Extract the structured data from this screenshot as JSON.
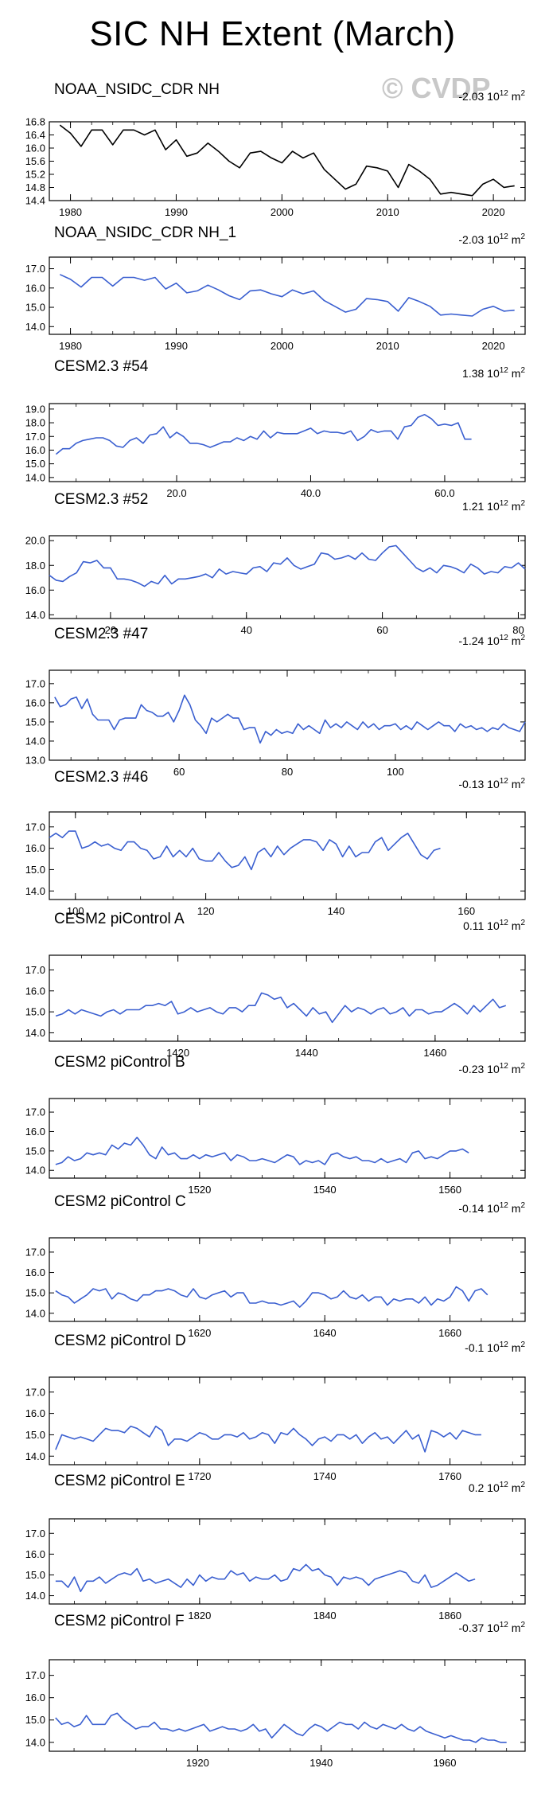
{
  "title": "SIC NH Extent (March)",
  "watermark": "© CVDP",
  "colors": {
    "obs": "#000000",
    "model": "#3a5fd0"
  },
  "chart_data": [
    {
      "type": "line",
      "title": "NOAA_NSIDC_CDR NH",
      "trend": "-2.03",
      "trend_unit": "10",
      "trend_exp": "12",
      "trend_unit2": "m",
      "trend_exp2": "2",
      "xlim": [
        1978,
        2023
      ],
      "ylim": [
        14.4,
        16.8
      ],
      "yticks": [
        "16.8",
        "16.4",
        "16.0",
        "15.6",
        "15.2",
        "14.8",
        "14.4"
      ],
      "ytick_vals": [
        16.8,
        16.4,
        16.0,
        15.6,
        15.2,
        14.8,
        14.4
      ],
      "xticks": [
        "1980",
        "1990",
        "2000",
        "2010",
        "2020"
      ],
      "xtick_vals": [
        1980,
        1990,
        2000,
        2010,
        2020
      ],
      "color": "obs",
      "x_start": 1979,
      "values": [
        16.7,
        16.45,
        16.05,
        16.55,
        16.55,
        16.1,
        16.55,
        16.55,
        16.4,
        16.55,
        15.95,
        16.25,
        15.75,
        15.85,
        16.15,
        15.9,
        15.6,
        15.4,
        15.85,
        15.9,
        15.7,
        15.55,
        15.9,
        15.7,
        15.85,
        15.35,
        15.05,
        14.75,
        14.9,
        15.45,
        15.4,
        15.3,
        14.8,
        15.5,
        15.3,
        15.05,
        14.6,
        14.65,
        14.6,
        14.55,
        14.9,
        15.05,
        14.8,
        14.85
      ]
    },
    {
      "type": "line",
      "title": "NOAA_NSIDC_CDR NH_1",
      "trend": "-2.03",
      "trend_unit": "10",
      "trend_exp": "12",
      "trend_unit2": "m",
      "trend_exp2": "2",
      "xlim": [
        1978,
        2023
      ],
      "ylim": [
        13.6,
        17.6
      ],
      "yticks": [
        "17.0",
        "16.0",
        "15.0",
        "14.0"
      ],
      "ytick_vals": [
        17,
        16,
        15,
        14
      ],
      "xticks": [
        "1980",
        "1990",
        "2000",
        "2010",
        "2020"
      ],
      "xtick_vals": [
        1980,
        1990,
        2000,
        2010,
        2020
      ],
      "color": "model",
      "x_start": 1979,
      "values": [
        16.7,
        16.45,
        16.05,
        16.55,
        16.55,
        16.1,
        16.55,
        16.55,
        16.4,
        16.55,
        15.95,
        16.25,
        15.75,
        15.85,
        16.15,
        15.9,
        15.6,
        15.4,
        15.85,
        15.9,
        15.7,
        15.55,
        15.9,
        15.7,
        15.85,
        15.35,
        15.05,
        14.75,
        14.9,
        15.45,
        15.4,
        15.3,
        14.8,
        15.5,
        15.3,
        15.05,
        14.6,
        14.65,
        14.6,
        14.55,
        14.9,
        15.05,
        14.8,
        14.85
      ]
    },
    {
      "type": "line",
      "title": "CESM2.3 #54",
      "trend": "1.38",
      "trend_unit": "10",
      "trend_exp": "12",
      "trend_unit2": "m",
      "trend_exp2": "2",
      "xlim": [
        1,
        72
      ],
      "ylim": [
        13.7,
        19.4
      ],
      "yticks": [
        "19.0",
        "18.0",
        "17.0",
        "16.0",
        "15.0",
        "14.0"
      ],
      "ytick_vals": [
        19,
        18,
        17,
        16,
        15,
        14
      ],
      "xticks": [
        "20.0",
        "40.0",
        "60.0"
      ],
      "xtick_vals": [
        20,
        40,
        60
      ],
      "color": "model",
      "x_start": 2,
      "values": [
        15.7,
        16.1,
        16.1,
        16.5,
        16.7,
        16.8,
        16.9,
        16.9,
        16.7,
        16.3,
        16.2,
        16.7,
        16.9,
        16.5,
        17.1,
        17.2,
        17.7,
        16.9,
        17.3,
        17.0,
        16.5,
        16.5,
        16.4,
        16.2,
        16.4,
        16.6,
        16.6,
        16.9,
        16.7,
        17.0,
        16.8,
        17.4,
        16.9,
        17.3,
        17.2,
        17.2,
        17.2,
        17.4,
        17.6,
        17.2,
        17.4,
        17.3,
        17.3,
        17.2,
        17.4,
        16.7,
        17.0,
        17.5,
        17.3,
        17.4,
        17.4,
        16.8,
        17.7,
        17.8,
        18.4,
        18.6,
        18.3,
        17.8,
        17.9,
        17.8,
        18.0,
        16.8,
        16.8
      ]
    },
    {
      "type": "line",
      "title": "CESM2.3 #52",
      "trend": "1.21",
      "trend_unit": "10",
      "trend_exp": "12",
      "trend_unit2": "m",
      "trend_exp2": "2",
      "xlim": [
        11,
        81
      ],
      "ylim": [
        13.7,
        20.4
      ],
      "yticks": [
        "20.0",
        "18.0",
        "16.0",
        "14.0"
      ],
      "ytick_vals": [
        20,
        18,
        16,
        14
      ],
      "xticks": [
        "20",
        "40",
        "60",
        "80"
      ],
      "xtick_vals": [
        20,
        40,
        60,
        80
      ],
      "color": "model",
      "x_start": 11,
      "values": [
        17.2,
        16.8,
        16.7,
        17.1,
        17.4,
        18.3,
        18.2,
        18.4,
        17.8,
        17.8,
        16.9,
        16.9,
        16.8,
        16.6,
        16.3,
        16.7,
        16.5,
        17.2,
        16.5,
        16.9,
        16.9,
        17.0,
        17.1,
        17.3,
        17.0,
        17.7,
        17.3,
        17.5,
        17.4,
        17.3,
        17.8,
        17.9,
        17.5,
        18.2,
        18.1,
        18.6,
        18.0,
        17.7,
        17.9,
        18.1,
        19.0,
        18.9,
        18.5,
        18.6,
        18.8,
        18.5,
        19.0,
        18.5,
        18.4,
        19.0,
        19.5,
        19.6,
        19.0,
        18.4,
        17.8,
        17.5,
        17.8,
        17.4,
        18.0,
        17.9,
        17.7,
        17.4,
        18.1,
        17.8,
        17.3,
        17.5,
        17.4,
        17.9,
        17.8,
        18.2,
        17.7
      ]
    },
    {
      "type": "line",
      "title": "CESM2.3 #47",
      "trend": "-1.24",
      "trend_unit": "10",
      "trend_exp": "12",
      "trend_unit2": "m",
      "trend_exp2": "2",
      "xlim": [
        36,
        124
      ],
      "ylim": [
        13.0,
        17.7
      ],
      "yticks": [
        "17.0",
        "16.0",
        "15.0",
        "14.0",
        "13.0"
      ],
      "ytick_vals": [
        17,
        16,
        15,
        14,
        13
      ],
      "xticks": [
        "60",
        "80",
        "100"
      ],
      "xtick_vals": [
        60,
        80,
        100
      ],
      "color": "model",
      "x_start": 37,
      "values": [
        16.3,
        15.8,
        15.9,
        16.2,
        16.3,
        15.7,
        16.2,
        15.4,
        15.1,
        15.1,
        15.1,
        14.6,
        15.1,
        15.2,
        15.2,
        15.2,
        15.9,
        15.6,
        15.5,
        15.3,
        15.3,
        15.5,
        15.0,
        15.6,
        16.4,
        15.9,
        15.1,
        14.8,
        14.4,
        15.2,
        15.0,
        15.2,
        15.4,
        15.2,
        15.2,
        14.6,
        14.7,
        14.7,
        13.9,
        14.5,
        14.3,
        14.6,
        14.4,
        14.5,
        14.4,
        14.9,
        14.6,
        14.8,
        14.6,
        14.4,
        15.1,
        14.7,
        14.9,
        14.7,
        15.0,
        14.8,
        14.6,
        15.0,
        14.7,
        14.9,
        14.6,
        14.8,
        14.8,
        14.9,
        14.6,
        14.8,
        14.6,
        15.0,
        14.8,
        14.6,
        14.8,
        15.0,
        14.8,
        14.8,
        14.5,
        14.9,
        14.7,
        14.8,
        14.6,
        14.7,
        14.5,
        14.7,
        14.6,
        14.9,
        14.7,
        14.6,
        14.5,
        15.0
      ]
    },
    {
      "type": "line",
      "title": "CESM2.3 #46",
      "trend": "-0.13",
      "trend_unit": "10",
      "trend_exp": "12",
      "trend_unit2": "m",
      "trend_exp2": "2",
      "xlim": [
        96,
        169
      ],
      "ylim": [
        13.6,
        17.7
      ],
      "yticks": [
        "17.0",
        "16.0",
        "15.0",
        "14.0"
      ],
      "ytick_vals": [
        17,
        16,
        15,
        14
      ],
      "xticks": [
        "100",
        "120",
        "140",
        "160"
      ],
      "xtick_vals": [
        100,
        120,
        140,
        160
      ],
      "color": "model",
      "x_start": 96,
      "values": [
        16.5,
        16.7,
        16.5,
        16.8,
        16.8,
        16.0,
        16.1,
        16.3,
        16.1,
        16.2,
        16.0,
        15.9,
        16.3,
        16.3,
        16.0,
        15.9,
        15.5,
        15.6,
        16.1,
        15.6,
        15.9,
        15.6,
        16.0,
        15.5,
        15.4,
        15.4,
        15.8,
        15.4,
        15.1,
        15.2,
        15.6,
        15.0,
        15.8,
        16.0,
        15.6,
        16.1,
        15.7,
        16.0,
        16.2,
        16.4,
        16.4,
        16.3,
        15.9,
        16.4,
        16.2,
        15.6,
        16.1,
        15.6,
        15.8,
        15.8,
        16.3,
        16.5,
        15.9,
        16.2,
        16.5,
        16.7,
        16.2,
        15.7,
        15.5,
        15.9,
        16.0
      ]
    },
    {
      "type": "line",
      "title": "CESM2 piControl A",
      "trend": "0.11",
      "trend_unit": "10",
      "trend_exp": "12",
      "trend_unit2": "m",
      "trend_exp2": "2",
      "xlim": [
        1400,
        1474
      ],
      "ylim": [
        13.6,
        17.7
      ],
      "yticks": [
        "17.0",
        "16.0",
        "15.0",
        "14.0"
      ],
      "ytick_vals": [
        17,
        16,
        15,
        14
      ],
      "xticks": [
        "1420",
        "1440",
        "1460"
      ],
      "xtick_vals": [
        1420,
        1440,
        1460
      ],
      "color": "model",
      "x_start": 1401,
      "values": [
        14.8,
        14.9,
        15.1,
        14.9,
        15.1,
        15.0,
        14.9,
        14.8,
        15.0,
        15.1,
        14.9,
        15.1,
        15.1,
        15.1,
        15.3,
        15.3,
        15.4,
        15.3,
        15.5,
        14.9,
        15.0,
        15.2,
        15.0,
        15.1,
        15.2,
        15.0,
        14.9,
        15.2,
        15.2,
        15.0,
        15.3,
        15.3,
        15.9,
        15.8,
        15.6,
        15.7,
        15.2,
        15.4,
        15.1,
        14.8,
        15.2,
        14.9,
        15.0,
        14.5,
        14.9,
        15.3,
        15.0,
        15.2,
        15.1,
        14.9,
        15.1,
        15.2,
        14.9,
        15.0,
        15.2,
        14.8,
        15.1,
        15.1,
        14.9,
        15.0,
        15.0,
        15.2,
        15.4,
        15.2,
        14.9,
        15.3,
        15.0,
        15.3,
        15.6,
        15.2,
        15.3
      ]
    },
    {
      "type": "line",
      "title": "CESM2 piControl B",
      "trend": "-0.23",
      "trend_unit": "10",
      "trend_exp": "12",
      "trend_unit2": "m",
      "trend_exp2": "2",
      "xlim": [
        1496,
        1572
      ],
      "ylim": [
        13.6,
        17.7
      ],
      "yticks": [
        "17.0",
        "16.0",
        "15.0",
        "14.0"
      ],
      "ytick_vals": [
        17,
        16,
        15,
        14
      ],
      "xticks": [
        "1520",
        "1540",
        "1560"
      ],
      "xtick_vals": [
        1520,
        1540,
        1560
      ],
      "color": "model",
      "x_start": 1497,
      "values": [
        14.3,
        14.4,
        14.7,
        14.5,
        14.6,
        14.9,
        14.8,
        14.9,
        14.8,
        15.3,
        15.1,
        15.4,
        15.3,
        15.7,
        15.3,
        14.8,
        14.6,
        15.2,
        14.8,
        14.9,
        14.6,
        14.6,
        14.8,
        14.6,
        14.8,
        14.7,
        14.8,
        14.9,
        14.5,
        14.8,
        14.7,
        14.5,
        14.5,
        14.6,
        14.5,
        14.4,
        14.6,
        14.8,
        14.7,
        14.3,
        14.5,
        14.4,
        14.5,
        14.3,
        14.8,
        14.9,
        14.7,
        14.6,
        14.7,
        14.5,
        14.5,
        14.4,
        14.6,
        14.4,
        14.5,
        14.6,
        14.4,
        14.9,
        15.0,
        14.6,
        14.7,
        14.6,
        14.8,
        15.0,
        15.0,
        15.1,
        14.9
      ]
    },
    {
      "type": "line",
      "title": "CESM2 piControl C",
      "trend": "-0.14",
      "trend_unit": "10",
      "trend_exp": "12",
      "trend_unit2": "m",
      "trend_exp2": "2",
      "xlim": [
        1596,
        1672
      ],
      "ylim": [
        13.6,
        17.7
      ],
      "yticks": [
        "17.0",
        "16.0",
        "15.0",
        "14.0"
      ],
      "ytick_vals": [
        17,
        16,
        15,
        14
      ],
      "xticks": [
        "1620",
        "1640",
        "1660"
      ],
      "xtick_vals": [
        1620,
        1640,
        1660
      ],
      "color": "model",
      "x_start": 1597,
      "values": [
        15.1,
        14.9,
        14.8,
        14.5,
        14.7,
        14.9,
        15.2,
        15.1,
        15.2,
        14.7,
        15.0,
        14.9,
        14.7,
        14.6,
        14.9,
        14.9,
        15.1,
        15.1,
        15.2,
        15.1,
        14.9,
        14.8,
        15.2,
        14.8,
        14.7,
        14.9,
        15.0,
        15.1,
        14.8,
        15.0,
        15.0,
        14.5,
        14.5,
        14.6,
        14.5,
        14.5,
        14.4,
        14.5,
        14.6,
        14.3,
        14.6,
        15.0,
        15.0,
        14.9,
        14.7,
        14.8,
        15.1,
        14.8,
        14.7,
        14.9,
        14.6,
        14.8,
        14.8,
        14.4,
        14.7,
        14.6,
        14.7,
        14.7,
        14.5,
        14.8,
        14.4,
        14.7,
        14.6,
        14.8,
        15.3,
        15.1,
        14.6,
        15.1,
        15.2,
        14.9
      ]
    },
    {
      "type": "line",
      "title": "CESM2 piControl D",
      "trend": "-0.1",
      "trend_unit": "10",
      "trend_exp": "12",
      "trend_unit2": "m",
      "trend_exp2": "2",
      "xlim": [
        1696,
        1772
      ],
      "ylim": [
        13.6,
        17.7
      ],
      "yticks": [
        "17.0",
        "16.0",
        "15.0",
        "14.0"
      ],
      "ytick_vals": [
        17,
        16,
        15,
        14
      ],
      "xticks": [
        "1720",
        "1740",
        "1760"
      ],
      "xtick_vals": [
        1720,
        1740,
        1760
      ],
      "color": "model",
      "x_start": 1697,
      "values": [
        14.3,
        15.0,
        14.9,
        14.8,
        14.9,
        14.8,
        14.7,
        15.0,
        15.3,
        15.2,
        15.2,
        15.1,
        15.4,
        15.3,
        15.1,
        14.9,
        15.4,
        15.2,
        14.5,
        14.8,
        14.8,
        14.7,
        14.9,
        15.1,
        15.0,
        14.8,
        14.8,
        15.0,
        15.0,
        14.9,
        15.1,
        14.8,
        14.9,
        15.1,
        15.0,
        14.6,
        15.1,
        15.0,
        15.3,
        15.0,
        14.8,
        14.5,
        14.8,
        14.9,
        14.7,
        15.0,
        15.0,
        14.8,
        15.0,
        14.6,
        14.9,
        15.1,
        14.8,
        14.9,
        14.6,
        14.9,
        15.2,
        14.8,
        15.0,
        14.2,
        15.2,
        15.1,
        14.9,
        15.1,
        14.8,
        15.2,
        15.1,
        15.0,
        15.0
      ]
    },
    {
      "type": "line",
      "title": "CESM2 piControl E",
      "trend": "0.2",
      "trend_unit": "10",
      "trend_exp": "12",
      "trend_unit2": "m",
      "trend_exp2": "2",
      "xlim": [
        1796,
        1872
      ],
      "ylim": [
        13.6,
        17.7
      ],
      "yticks": [
        "17.0",
        "16.0",
        "15.0",
        "14.0"
      ],
      "ytick_vals": [
        17,
        16,
        15,
        14
      ],
      "xticks": [
        "1820",
        "1840",
        "1860"
      ],
      "xtick_vals": [
        1820,
        1840,
        1860
      ],
      "color": "model",
      "x_start": 1797,
      "values": [
        14.7,
        14.7,
        14.4,
        14.9,
        14.2,
        14.7,
        14.7,
        14.9,
        14.6,
        14.8,
        15.0,
        15.1,
        15.0,
        15.3,
        14.7,
        14.8,
        14.6,
        14.7,
        14.8,
        14.6,
        14.4,
        14.8,
        14.5,
        15.0,
        14.7,
        14.9,
        14.8,
        14.8,
        15.2,
        15.0,
        15.1,
        14.7,
        14.9,
        14.8,
        14.8,
        15.0,
        14.7,
        14.8,
        15.3,
        15.2,
        15.5,
        15.2,
        15.3,
        15.0,
        14.9,
        14.5,
        14.9,
        14.8,
        14.9,
        14.8,
        14.5,
        14.8,
        14.9,
        15.0,
        15.1,
        15.2,
        15.1,
        14.7,
        14.6,
        15.0,
        14.4,
        14.5,
        14.7,
        14.9,
        15.1,
        14.9,
        14.7,
        14.8
      ]
    },
    {
      "type": "line",
      "title": "CESM2 piControl F",
      "trend": "-0.37",
      "trend_unit": "10",
      "trend_exp": "12",
      "trend_unit2": "m",
      "trend_exp2": "2",
      "xlim": [
        1896,
        1973
      ],
      "ylim": [
        13.6,
        17.7
      ],
      "yticks": [
        "17.0",
        "16.0",
        "15.0",
        "14.0"
      ],
      "ytick_vals": [
        17,
        16,
        15,
        14
      ],
      "xticks": [
        "1920",
        "1940",
        "1960"
      ],
      "xtick_vals": [
        1920,
        1940,
        1960
      ],
      "color": "model",
      "x_start": 1897,
      "values": [
        15.1,
        14.8,
        14.9,
        14.7,
        14.8,
        15.2,
        14.8,
        14.8,
        14.8,
        15.2,
        15.3,
        15.0,
        14.8,
        14.6,
        14.7,
        14.7,
        14.9,
        14.6,
        14.6,
        14.5,
        14.6,
        14.5,
        14.6,
        14.7,
        14.8,
        14.5,
        14.6,
        14.7,
        14.6,
        14.6,
        14.5,
        14.6,
        14.8,
        14.5,
        14.6,
        14.2,
        14.5,
        14.8,
        14.6,
        14.4,
        14.3,
        14.6,
        14.8,
        14.7,
        14.5,
        14.7,
        14.9,
        14.8,
        14.8,
        14.6,
        14.9,
        14.7,
        14.6,
        14.8,
        14.7,
        14.6,
        14.8,
        14.6,
        14.5,
        14.7,
        14.5,
        14.4,
        14.3,
        14.2,
        14.3,
        14.2,
        14.1,
        14.1,
        14.0,
        14.2,
        14.1,
        14.1,
        14.0,
        14.0
      ]
    }
  ]
}
